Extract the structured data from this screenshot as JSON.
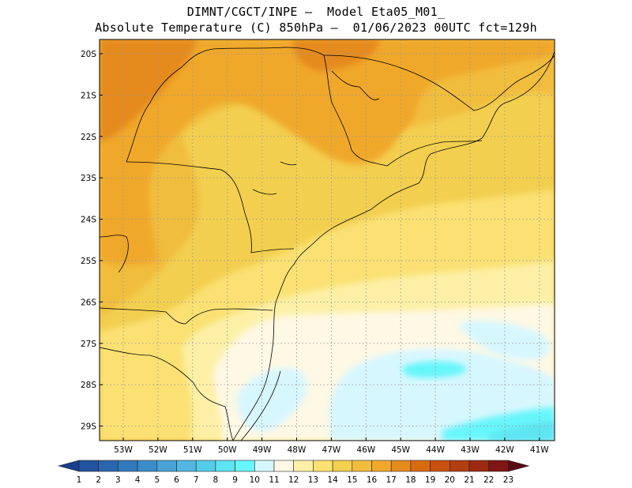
{
  "header": {
    "line1": "DIMNT/CGCT/INPE —  Model Eta05_M01_",
    "line2": "Absolute Temperature (C) 850hPa —  01/06/2023 00UTC fct=129h"
  },
  "map": {
    "lat_labels": [
      "20S",
      "21S",
      "22S",
      "23S",
      "24S",
      "25S",
      "26S",
      "27S",
      "28S",
      "29S"
    ],
    "lon_labels": [
      "53W",
      "52W",
      "51W",
      "50W",
      "49W",
      "48W",
      "47W",
      "46W",
      "45W",
      "44W",
      "43W",
      "42W",
      "41W"
    ],
    "grid": "dotted"
  },
  "colorbar": {
    "labels": [
      "1",
      "2",
      "3",
      "4",
      "5",
      "6",
      "7",
      "8",
      "9",
      "10",
      "11",
      "12",
      "13",
      "14",
      "15",
      "16",
      "17",
      "18",
      "19",
      "20",
      "21",
      "22",
      "23"
    ],
    "colors": [
      "#1a3f8e",
      "#22539e",
      "#2a66ad",
      "#3179ba",
      "#3b8dc8",
      "#49a2d6",
      "#52b7e1",
      "#53cde9",
      "#5ee4f2",
      "#66f6fb",
      "#d7f7ff",
      "#fef8e4",
      "#fdf0a6",
      "#fbe173",
      "#f3cf4f",
      "#f1bd3d",
      "#f0a82c",
      "#e58a1c",
      "#d96a10",
      "#c95010",
      "#b23e12",
      "#9c2a10",
      "#7e1613",
      "#5c0a14"
    ]
  }
}
